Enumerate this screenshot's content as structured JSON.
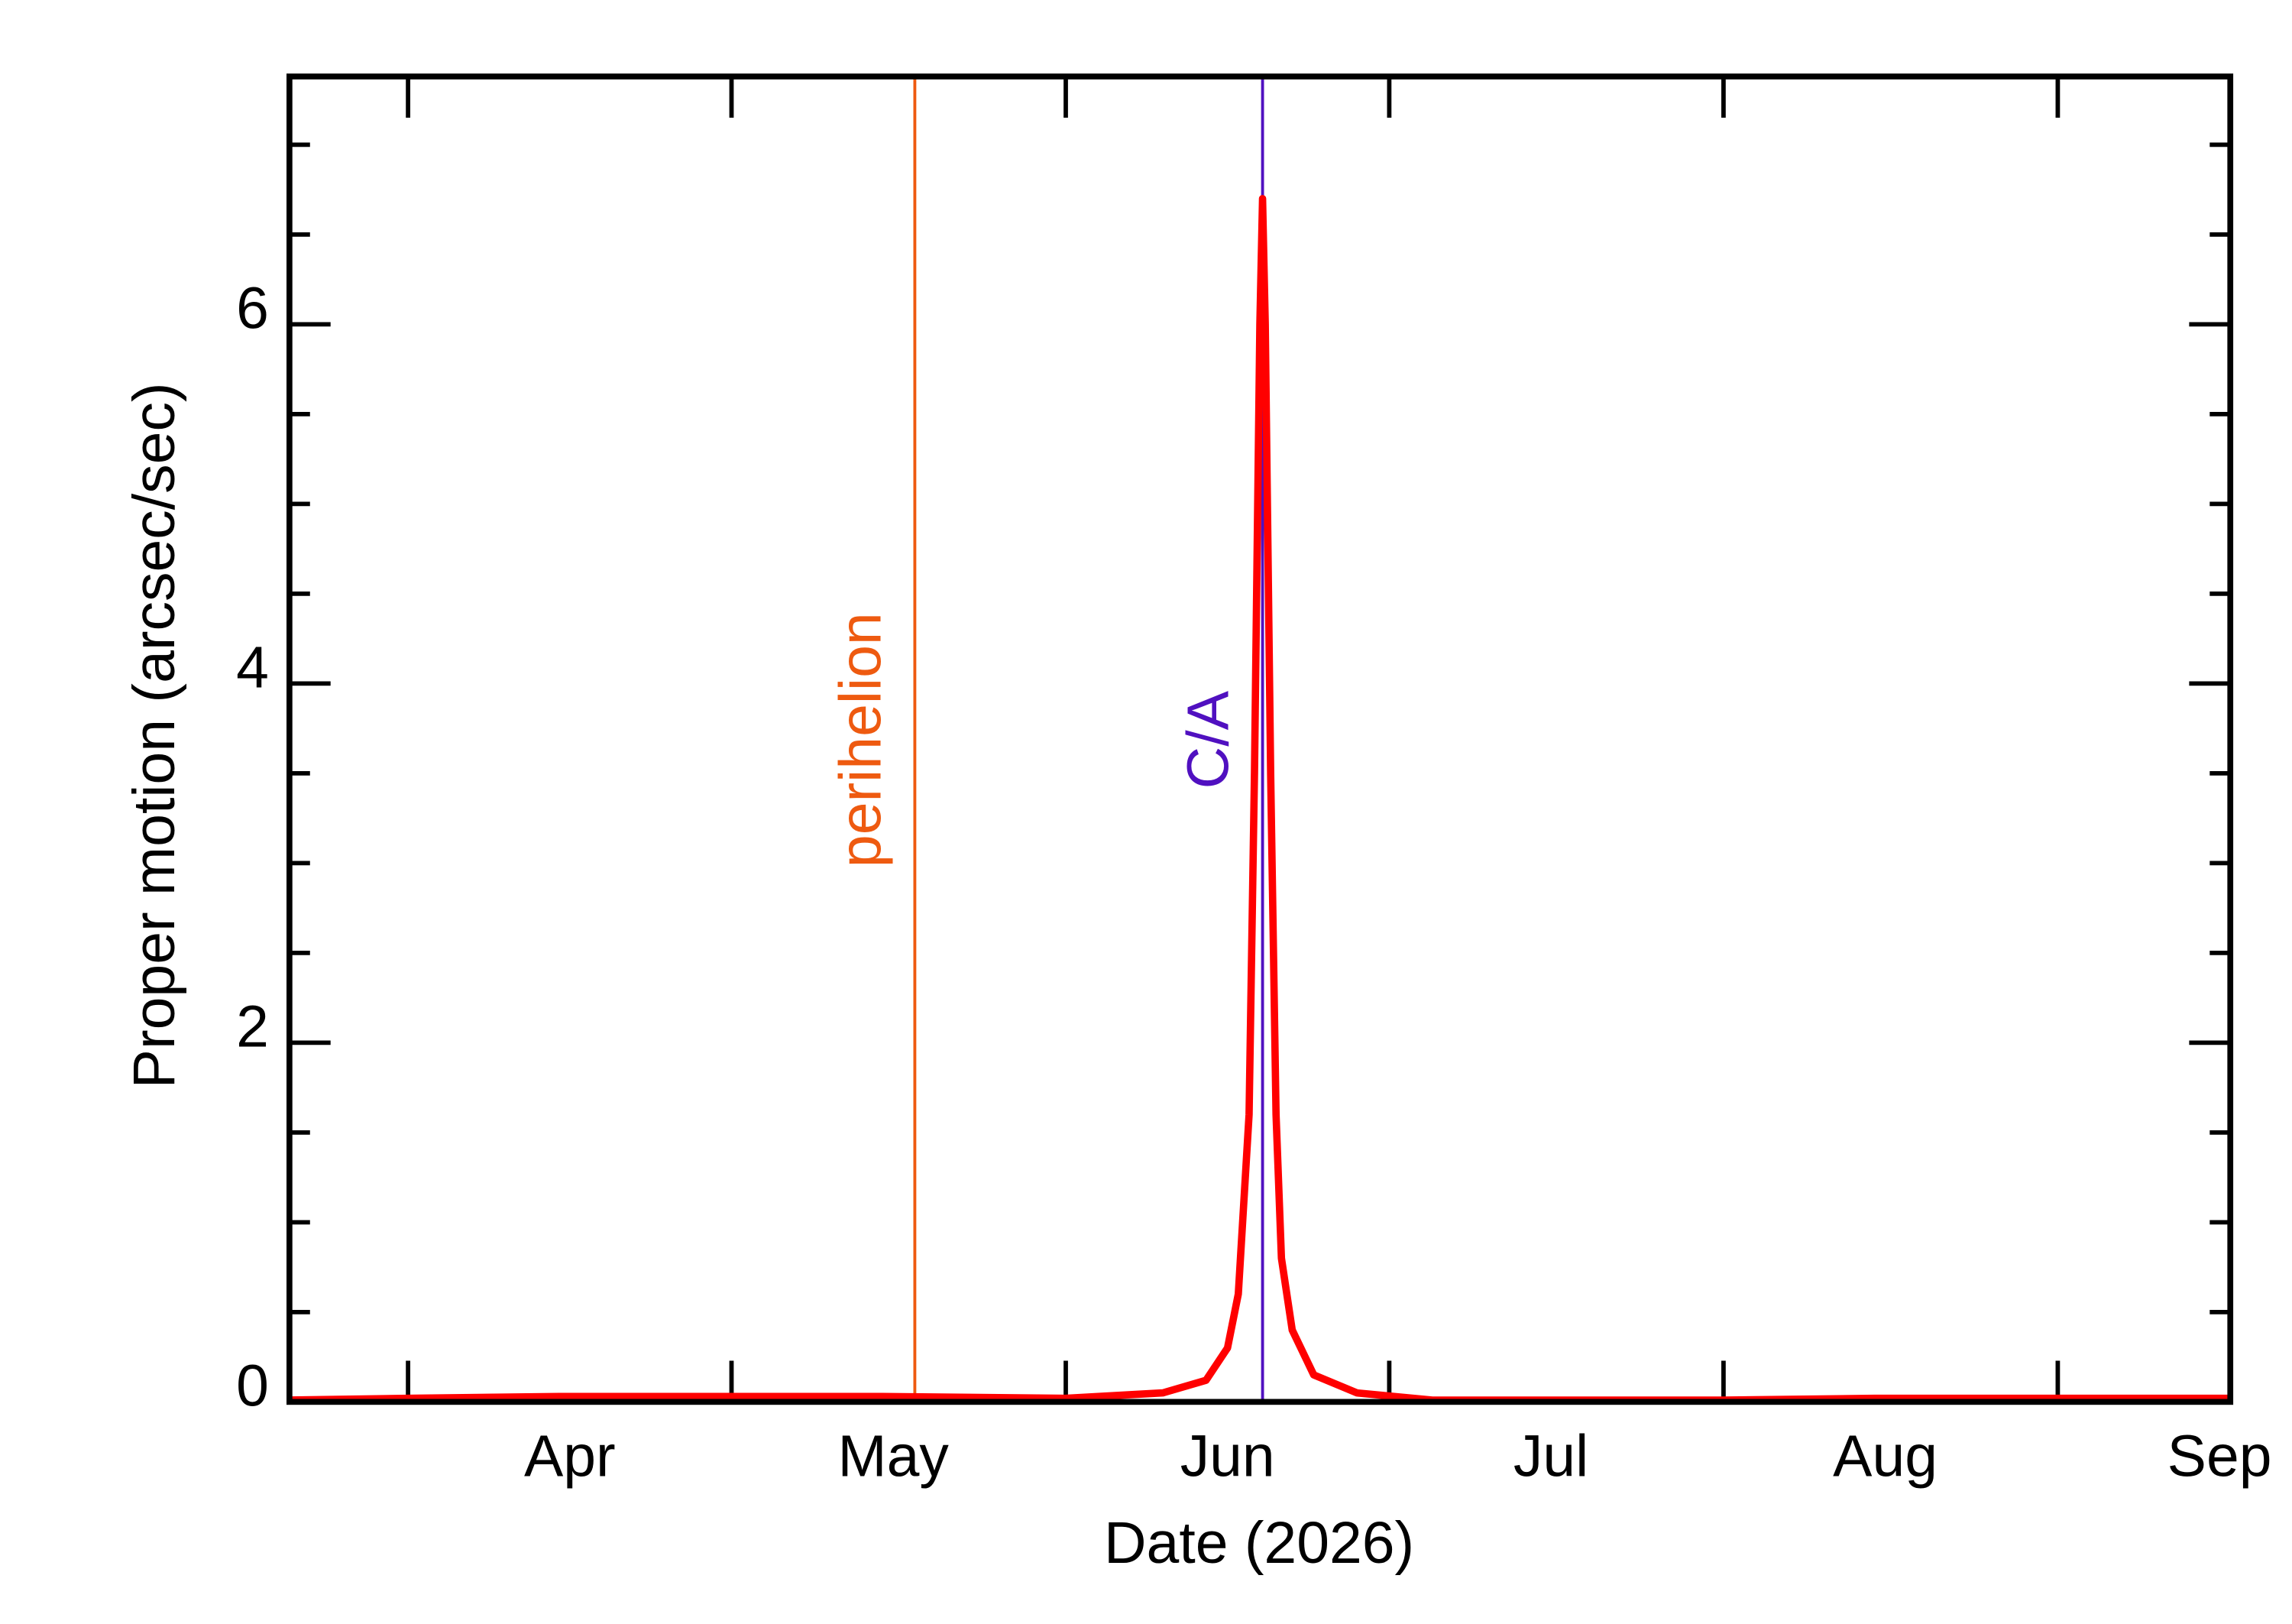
{
  "chart_data": {
    "type": "line",
    "xlabel": "Date (2026)",
    "ylabel": "Proper motion (arcsec/sec)",
    "xlim": [
      "2026-03-21",
      "2026-09-17"
    ],
    "ylim": [
      0,
      7.38
    ],
    "xticks": [
      {
        "value": "2026-04-01",
        "label": "Apr"
      },
      {
        "value": "2026-05-01",
        "label": "May"
      },
      {
        "value": "2026-06-01",
        "label": "Jun"
      },
      {
        "value": "2026-07-01",
        "label": "Jul"
      },
      {
        "value": "2026-08-01",
        "label": "Aug"
      },
      {
        "value": "2026-09-01",
        "label": "Sep"
      }
    ],
    "yticks": [
      0,
      2,
      4,
      6
    ],
    "yminorticks": [
      0.5,
      1,
      1.5,
      2.5,
      3,
      3.5,
      4.5,
      5,
      5.5,
      6.5,
      7
    ],
    "annotations": [
      {
        "label": "perihelion",
        "x": "2026-05-18",
        "color": "#ee5a10"
      },
      {
        "label": "C/A",
        "x": "2026-06-19T06:00",
        "color": "#5010c0"
      }
    ],
    "series": [
      {
        "color": "#ff0000",
        "x": [
          "2026-03-21",
          "2026-04-01",
          "2026-04-15",
          "2026-05-01",
          "2026-05-15",
          "2026-06-01",
          "2026-06-10",
          "2026-06-14",
          "2026-06-16",
          "2026-06-17",
          "2026-06-18",
          "2026-06-18T12:00",
          "2026-06-19T00:00",
          "2026-06-19T06:00",
          "2026-06-19T12:00",
          "2026-06-20T00:00",
          "2026-06-20T12:00",
          "2026-06-21",
          "2026-06-22",
          "2026-06-24",
          "2026-06-28",
          "2026-07-05",
          "2026-07-15",
          "2026-08-01",
          "2026-08-15",
          "2026-09-01",
          "2026-09-17"
        ],
        "values": [
          0.01,
          0.02,
          0.03,
          0.03,
          0.03,
          0.02,
          0.05,
          0.12,
          0.3,
          0.6,
          1.6,
          3.5,
          6.0,
          6.7,
          6.0,
          3.5,
          1.6,
          0.8,
          0.4,
          0.15,
          0.05,
          0.01,
          0.01,
          0.01,
          0.02,
          0.02,
          0.02
        ]
      }
    ]
  }
}
